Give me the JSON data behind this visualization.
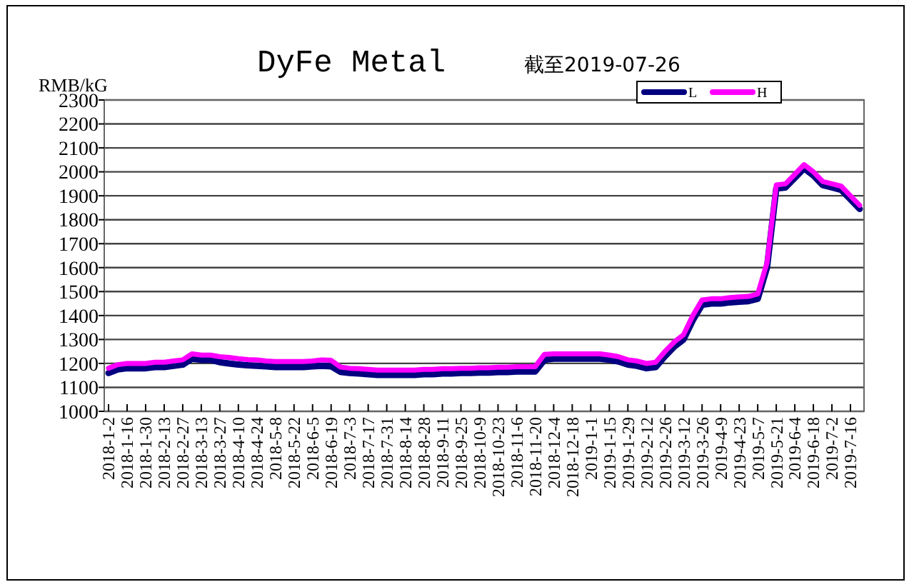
{
  "chart_data": {
    "type": "line",
    "title": "DyFe Metal",
    "subtitle": "截至2019-07-26",
    "ylabel": "RMB/kG",
    "categories": [
      "2018-1-2",
      null,
      "2018-1-16",
      null,
      "2018-1-30",
      null,
      "2018-2-13",
      null,
      "2018-2-27",
      null,
      "2018-3-13",
      null,
      "2018-3-27",
      null,
      "2018-4-10",
      null,
      "2018-4-24",
      null,
      "2018-5-8",
      null,
      "2018-5-22",
      null,
      "2018-6-5",
      null,
      "2018-6-19",
      null,
      "2018-7-3",
      null,
      "2018-7-17",
      null,
      "2018-7-31",
      null,
      "2018-8-14",
      null,
      "2018-8-28",
      null,
      "2018-9-11",
      null,
      "2018-9-25",
      null,
      "2018-10-9",
      null,
      "2018-10-23",
      null,
      "2018-11-6",
      null,
      "2018-11-20",
      null,
      "2018-12-4",
      null,
      "2018-12-18",
      null,
      "2019-1-1",
      null,
      "2019-1-15",
      null,
      "2019-1-29",
      null,
      "2019-2-12",
      null,
      "2019-2-26",
      null,
      "2019-3-12",
      null,
      "2019-3-26",
      null,
      "2019-4-9",
      null,
      "2019-4-23",
      null,
      "2019-5-7",
      null,
      "2019-5-21",
      null,
      "2019-6-4",
      null,
      "2019-6-18",
      null,
      "2019-7-2",
      null,
      "2019-7-16",
      null
    ],
    "series": [
      {
        "name": "L",
        "color": "#000080",
        "values": [
          1160,
          1175,
          1180,
          1180,
          1180,
          1185,
          1185,
          1190,
          1195,
          1220,
          1215,
          1215,
          1205,
          1200,
          1195,
          1192,
          1190,
          1188,
          1185,
          1185,
          1185,
          1185,
          1188,
          1190,
          1188,
          1165,
          1160,
          1158,
          1155,
          1152,
          1152,
          1152,
          1152,
          1152,
          1155,
          1155,
          1158,
          1158,
          1160,
          1160,
          1162,
          1162,
          1164,
          1164,
          1166,
          1166,
          1166,
          1215,
          1220,
          1220,
          1220,
          1220,
          1220,
          1220,
          1215,
          1208,
          1195,
          1190,
          1180,
          1185,
          1230,
          1270,
          1300,
          1380,
          1445,
          1450,
          1450,
          1455,
          1458,
          1460,
          1470,
          1600,
          1930,
          1935,
          1975,
          2015,
          1985,
          1945,
          1935,
          1925,
          1885,
          1845
        ]
      },
      {
        "name": "H",
        "color": "#ff00ff",
        "values": [
          1180,
          1195,
          1200,
          1200,
          1200,
          1205,
          1205,
          1210,
          1215,
          1240,
          1235,
          1235,
          1228,
          1225,
          1220,
          1216,
          1215,
          1210,
          1208,
          1208,
          1208,
          1208,
          1210,
          1215,
          1213,
          1185,
          1180,
          1178,
          1175,
          1172,
          1172,
          1172,
          1172,
          1172,
          1175,
          1175,
          1178,
          1178,
          1180,
          1180,
          1182,
          1182,
          1184,
          1184,
          1186,
          1186,
          1186,
          1238,
          1240,
          1240,
          1240,
          1240,
          1240,
          1240,
          1235,
          1228,
          1215,
          1210,
          1200,
          1205,
          1250,
          1290,
          1320,
          1400,
          1465,
          1470,
          1470,
          1475,
          1478,
          1480,
          1490,
          1620,
          1945,
          1950,
          1990,
          2030,
          2000,
          1960,
          1950,
          1940,
          1900,
          1860
        ]
      }
    ],
    "ylim": [
      1000,
      2300
    ],
    "yticks": [
      1000,
      1100,
      1200,
      1300,
      1400,
      1500,
      1600,
      1700,
      1800,
      1900,
      2000,
      2100,
      2200,
      2300
    ],
    "grid": "y",
    "legend": "top right",
    "marker": "none",
    "line_style": "solid"
  }
}
